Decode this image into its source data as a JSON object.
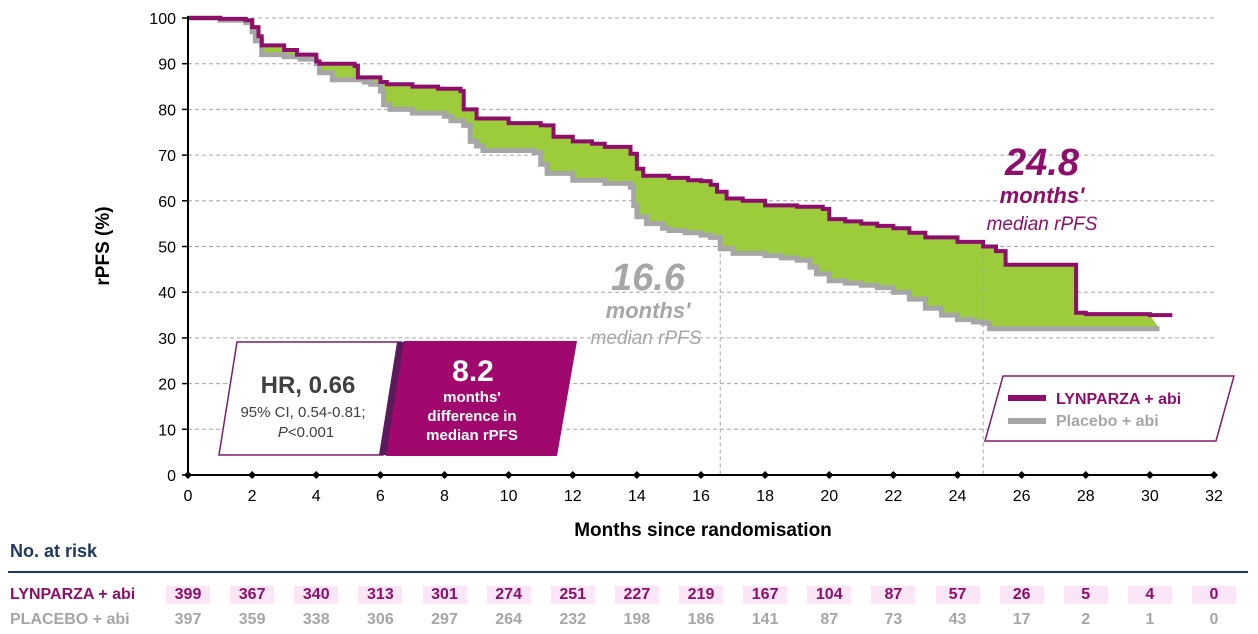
{
  "colors": {
    "lynparza": "#8e0f6b",
    "placebo": "#a6a6a6",
    "fill": "#9ccc3c",
    "grid": "#a6a6a6",
    "risk_header": "#1f3864",
    "hr_border": "#7f1d6a"
  },
  "chart_data": {
    "type": "line",
    "subtype": "kaplan-meier step",
    "xlabel": "Months since randomisation",
    "ylabel": "rPFS (%)",
    "xlim": [
      0,
      32
    ],
    "ylim": [
      0,
      100
    ],
    "xticks": [
      0,
      2,
      4,
      6,
      8,
      10,
      12,
      14,
      16,
      18,
      20,
      22,
      24,
      26,
      28,
      30,
      32
    ],
    "yticks": [
      0,
      10,
      20,
      30,
      40,
      50,
      60,
      70,
      80,
      90,
      100
    ],
    "grid": "horizontal dashed",
    "legend_position": "bottom-right",
    "series": [
      {
        "name": "LYNPARZA + abi",
        "color": "#8e0f6b",
        "x": [
          0,
          1.0,
          1.8,
          2.0,
          2.2,
          2.3,
          3.0,
          3.4,
          4.0,
          4.1,
          5.2,
          5.3,
          6.0,
          6.2,
          7.0,
          7.8,
          8.5,
          8.6,
          9.0,
          10.0,
          11.0,
          11.4,
          12.0,
          12.6,
          13.0,
          13.8,
          14.0,
          14.2,
          15.0,
          15.6,
          16.0,
          16.3,
          16.5,
          16.8,
          17.3,
          18.0,
          19.0,
          19.8,
          20.0,
          20.5,
          21.0,
          21.5,
          22.0,
          22.5,
          23.0,
          24.0,
          24.8,
          25.2,
          25.5,
          27.5,
          27.7,
          28.0,
          30.0,
          30.7
        ],
        "y": [
          100,
          99.8,
          99.5,
          98,
          96,
          94,
          93,
          92,
          90.5,
          90,
          89.5,
          87,
          86,
          85.5,
          85,
          84.5,
          84,
          80,
          78,
          77,
          76.5,
          74,
          73,
          72.5,
          71.8,
          70.3,
          67,
          65.5,
          65,
          64.5,
          64.3,
          63.5,
          62,
          60.5,
          60,
          59,
          58.7,
          58.2,
          56,
          55.5,
          55,
          54.5,
          54,
          53,
          52,
          51,
          50,
          49,
          46,
          46,
          35.5,
          35.2,
          35,
          35
        ]
      },
      {
        "name": "Placebo + abi",
        "color": "#a6a6a6",
        "x": [
          0,
          1.0,
          1.8,
          2.0,
          2.1,
          2.3,
          3.0,
          3.5,
          4.0,
          4.1,
          4.5,
          5.5,
          5.7,
          6.0,
          6.1,
          6.3,
          7.0,
          8.0,
          8.2,
          8.6,
          8.8,
          9.0,
          9.2,
          10.0,
          10.8,
          11.0,
          11.2,
          12.0,
          13.0,
          13.8,
          13.9,
          14.0,
          14.3,
          14.8,
          15.0,
          15.5,
          16.0,
          16.3,
          16.6,
          17.0,
          18.0,
          18.5,
          19.0,
          19.4,
          19.6,
          20.0,
          20.5,
          21.0,
          21.5,
          22.0,
          22.5,
          23.0,
          23.5,
          24.0,
          24.5,
          24.8,
          25.0,
          26.0,
          28.0,
          30.3
        ],
        "y": [
          100,
          99.5,
          99,
          97,
          95,
          92,
          91.5,
          91,
          90,
          88,
          86.5,
          86,
          85.5,
          84,
          81,
          80,
          79.2,
          78.5,
          77.5,
          76.5,
          73,
          72,
          71,
          71,
          70.5,
          68,
          66,
          64.5,
          63.8,
          63,
          59,
          56.5,
          55,
          54,
          53.5,
          53,
          52.5,
          52,
          49.5,
          48.5,
          48,
          47.5,
          47,
          45.5,
          44,
          42.5,
          42,
          41.5,
          41,
          40,
          38.5,
          36.5,
          35,
          34,
          33.5,
          33.2,
          32,
          32,
          32,
          32
        ]
      }
    ],
    "annotations": [
      {
        "value": "16.6",
        "line1": "months'",
        "line2": "median rPFS",
        "series": "Placebo + abi",
        "x": 16.6
      },
      {
        "value": "24.8",
        "line1": "months'",
        "line2": "median rPFS",
        "series": "LYNPARZA + abi",
        "x": 24.8
      }
    ],
    "hr_box": {
      "title": "HR, 0.66",
      "ci": "95% CI, 0.54-0.81;",
      "p_italic": "P",
      "p_rest": "<0.001",
      "difference_value": "8.2",
      "difference_lines": [
        "months'",
        "difference in",
        "median rPFS"
      ]
    },
    "legend": [
      {
        "label": "LYNPARZA + abi",
        "color": "#8e0f6b"
      },
      {
        "label": "Placebo + abi",
        "color": "#a6a6a6"
      }
    ]
  },
  "risk_table": {
    "title": "No. at risk",
    "times": [
      0,
      2,
      4,
      6,
      8,
      10,
      12,
      14,
      16,
      18,
      20,
      22,
      24,
      26,
      28,
      30,
      32
    ],
    "rows": [
      {
        "label": "LYNPARZA + abi",
        "color": "#8e0f6b",
        "values": [
          "399",
          "367",
          "340",
          "313",
          "301",
          "274",
          "251",
          "227",
          "219",
          "167",
          "104",
          "87",
          "57",
          "26",
          "5",
          "4",
          "0"
        ]
      },
      {
        "label": "PLACEBO + abi",
        "color": "#a6a6a6",
        "values": [
          "397",
          "359",
          "338",
          "306",
          "297",
          "264",
          "232",
          "198",
          "186",
          "141",
          "87",
          "73",
          "43",
          "17",
          "2",
          "1",
          "0"
        ]
      }
    ]
  }
}
